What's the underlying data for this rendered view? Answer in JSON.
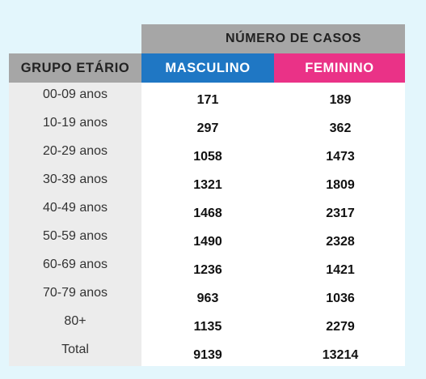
{
  "table": {
    "super_header": "NÚMERO DE CASOS",
    "columns": {
      "group": "GRUPO ETÁRIO",
      "male": "MASCULINO",
      "female": "FEMININO"
    },
    "colors": {
      "header_gray": "#a6a6a6",
      "male_blue": "#1f77c4",
      "female_pink": "#ea3287",
      "group_column_bg": "#ececec",
      "page_bg": "#e3f6fc"
    }
  },
  "chart_data": {
    "type": "table",
    "title": "NÚMERO DE CASOS",
    "columns": [
      "GRUPO ETÁRIO",
      "MASCULINO",
      "FEMININO"
    ],
    "rows": [
      {
        "group": "00-09 anos",
        "male": "171",
        "female": "189"
      },
      {
        "group": "10-19 anos",
        "male": "297",
        "female": "362"
      },
      {
        "group": "20-29 anos",
        "male": "1058",
        "female": "1473"
      },
      {
        "group": "30-39 anos",
        "male": "1321",
        "female": "1809"
      },
      {
        "group": "40-49 anos",
        "male": "1468",
        "female": "2317"
      },
      {
        "group": "50-59 anos",
        "male": "1490",
        "female": "2328"
      },
      {
        "group": "60-69 anos",
        "male": "1236",
        "female": "1421"
      },
      {
        "group": "70-79 anos",
        "male": "963",
        "female": "1036"
      },
      {
        "group": "80+",
        "male": "1135",
        "female": "2279"
      },
      {
        "group": "Total",
        "male": "9139",
        "female": "13214"
      }
    ]
  }
}
